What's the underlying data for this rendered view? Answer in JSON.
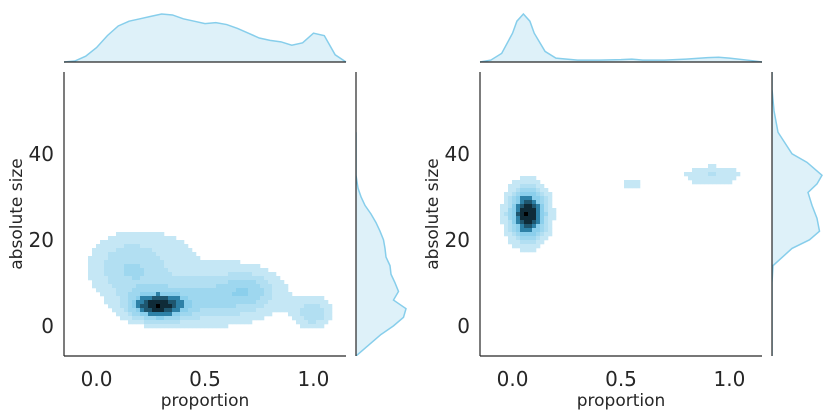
{
  "chart_data": [
    {
      "type": "kde2d",
      "xlabel": "proportion",
      "ylabel": "absolute size",
      "xlim": [
        -0.15,
        1.15
      ],
      "ylim": [
        -7,
        59
      ],
      "xticks": [
        0.0,
        0.5,
        1.0
      ],
      "xtick_labels": [
        "0.0",
        "0.5",
        "1.0"
      ],
      "yticks": [
        0,
        20,
        40
      ],
      "ytick_labels": [
        "0",
        "20",
        "40"
      ],
      "grid": false,
      "legend": "none",
      "fill_color": "#87ceeb",
      "dark_color": "#000000",
      "contour_levels": 8,
      "density_peaks": [
        {
          "x": 0.28,
          "y": 4.5,
          "x_spread": 0.09,
          "y_spread": 2.2,
          "weight": 1.0
        },
        {
          "x": 0.52,
          "y": 6.5,
          "x_spread": 0.22,
          "y_spread": 4.5,
          "weight": 0.5
        },
        {
          "x": 0.15,
          "y": 13.5,
          "x_spread": 0.13,
          "y_spread": 5.0,
          "weight": 0.45
        },
        {
          "x": 0.7,
          "y": 8.5,
          "x_spread": 0.09,
          "y_spread": 2.8,
          "weight": 0.32
        },
        {
          "x": 1.0,
          "y": 3.0,
          "x_spread": 0.06,
          "y_spread": 2.6,
          "weight": 0.45
        },
        {
          "x": 0.55,
          "y": 20.0,
          "x_spread": 0.32,
          "y_spread": 4.5,
          "weight": 0.14
        }
      ],
      "x_marginal": {
        "x": [
          -0.15,
          -0.1,
          -0.05,
          0.0,
          0.05,
          0.1,
          0.15,
          0.2,
          0.25,
          0.3,
          0.35,
          0.4,
          0.45,
          0.5,
          0.55,
          0.6,
          0.65,
          0.7,
          0.75,
          0.8,
          0.85,
          0.9,
          0.95,
          1.0,
          1.05,
          1.1,
          1.15
        ],
        "density": [
          0.0,
          0.02,
          0.12,
          0.3,
          0.55,
          0.75,
          0.85,
          0.9,
          0.95,
          1.0,
          0.98,
          0.9,
          0.85,
          0.8,
          0.82,
          0.78,
          0.7,
          0.6,
          0.5,
          0.45,
          0.42,
          0.35,
          0.4,
          0.6,
          0.55,
          0.15,
          0.0
        ]
      },
      "y_marginal": {
        "y": [
          -7,
          -2,
          0,
          2,
          4,
          6,
          8,
          10,
          12,
          14,
          16,
          18,
          20,
          22,
          24,
          26,
          28,
          30,
          32,
          35,
          38,
          40,
          45
        ],
        "density": [
          0.0,
          0.5,
          0.75,
          0.95,
          1.0,
          0.75,
          0.85,
          0.78,
          0.7,
          0.68,
          0.6,
          0.58,
          0.55,
          0.48,
          0.4,
          0.3,
          0.18,
          0.1,
          0.04,
          0.0,
          0.0,
          0.0,
          0.0
        ]
      }
    },
    {
      "type": "kde2d",
      "xlabel": "proportion",
      "ylabel": "absolute size",
      "xlim": [
        -0.15,
        1.15
      ],
      "ylim": [
        -7,
        59
      ],
      "xticks": [
        0.0,
        0.5,
        1.0
      ],
      "xtick_labels": [
        "0.0",
        "0.5",
        "1.0"
      ],
      "yticks": [
        0,
        20,
        40
      ],
      "ytick_labels": [
        "0",
        "20",
        "40"
      ],
      "grid": false,
      "legend": "none",
      "fill_color": "#87ceeb",
      "dark_color": "#000000",
      "contour_levels": 8,
      "density_peaks": [
        {
          "x": 0.07,
          "y": 26.0,
          "x_spread": 0.06,
          "y_spread": 4.3,
          "weight": 1.0
        },
        {
          "x": 0.55,
          "y": 33.0,
          "x_spread": 0.04,
          "y_spread": 1.0,
          "weight": 0.2
        },
        {
          "x": 0.92,
          "y": 35.0,
          "x_spread": 0.1,
          "y_spread": 1.8,
          "weight": 0.26
        }
      ],
      "x_marginal": {
        "x": [
          -0.15,
          -0.1,
          -0.05,
          0.0,
          0.02,
          0.05,
          0.08,
          0.1,
          0.15,
          0.2,
          0.3,
          0.4,
          0.5,
          0.55,
          0.6,
          0.7,
          0.8,
          0.9,
          0.95,
          1.0,
          1.1,
          1.15
        ],
        "density": [
          0.0,
          0.04,
          0.18,
          0.6,
          0.85,
          1.0,
          0.85,
          0.6,
          0.22,
          0.08,
          0.04,
          0.04,
          0.05,
          0.06,
          0.04,
          0.04,
          0.06,
          0.09,
          0.1,
          0.08,
          0.03,
          0.0
        ]
      },
      "y_marginal": {
        "y": [
          -7,
          10,
          14,
          18,
          20,
          22,
          25,
          28,
          31,
          33,
          35,
          38,
          40,
          45,
          50,
          55,
          59
        ],
        "density": [
          0.0,
          0.0,
          0.02,
          0.4,
          0.75,
          0.95,
          0.9,
          0.8,
          0.72,
          0.9,
          1.0,
          0.7,
          0.4,
          0.12,
          0.04,
          0.0,
          0.0
        ]
      }
    }
  ]
}
